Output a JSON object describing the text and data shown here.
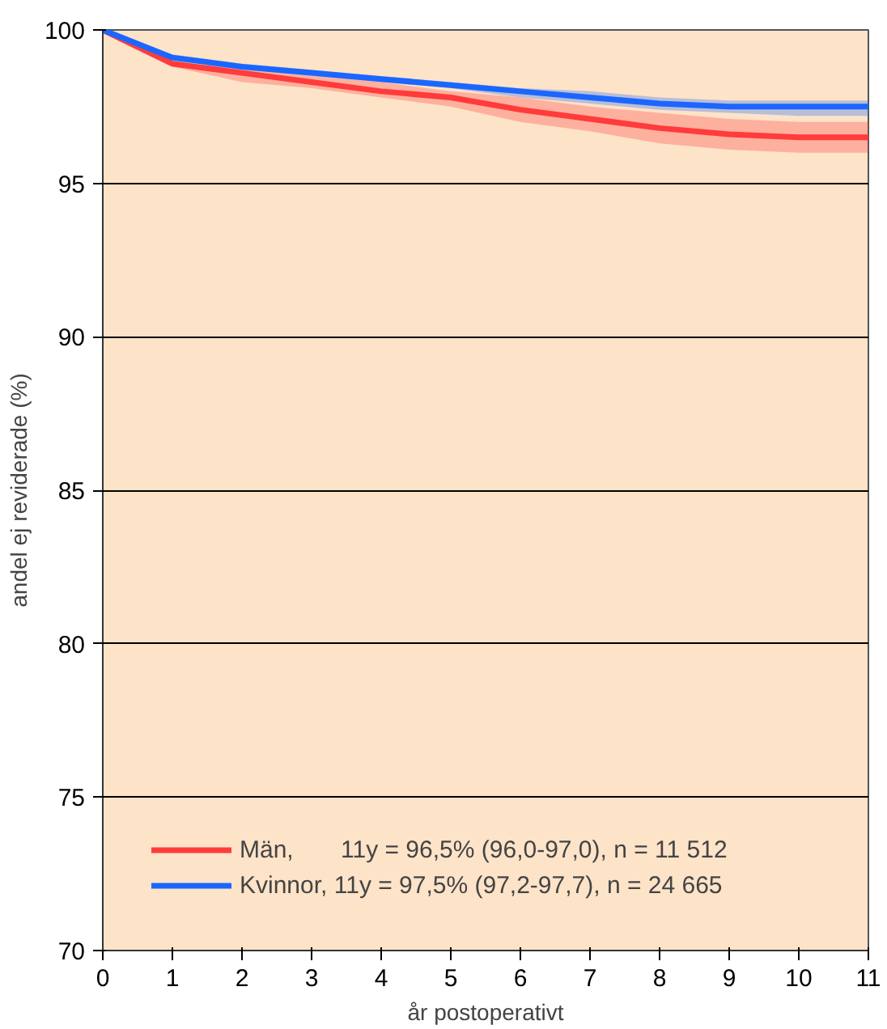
{
  "chart_data": {
    "type": "line",
    "xlabel": "år postoperativt",
    "ylabel": "andel ej reviderade (%)",
    "x": [
      0,
      1,
      2,
      3,
      4,
      5,
      6,
      7,
      8,
      9,
      10,
      11
    ],
    "series": [
      {
        "name": "Män,       11y = 96,5% (96,0-97,0), n = 11 512",
        "color": "#ff3b3b",
        "values": [
          100,
          98.9,
          98.6,
          98.3,
          98.0,
          97.8,
          97.4,
          97.1,
          96.8,
          96.6,
          96.5,
          96.5
        ],
        "lower": [
          100,
          98.8,
          98.3,
          98.1,
          97.8,
          97.5,
          97.0,
          96.7,
          96.3,
          96.1,
          96.0,
          96.0
        ],
        "upper": [
          100,
          99.0,
          98.7,
          98.5,
          98.3,
          98.0,
          97.8,
          97.5,
          97.3,
          97.1,
          97.0,
          97.0
        ]
      },
      {
        "name": "Kvinnor, 11y = 97,5% (97,2-97,7), n = 24 665",
        "color": "#1a66ff",
        "values": [
          100,
          99.1,
          98.8,
          98.6,
          98.4,
          98.2,
          98.0,
          97.8,
          97.6,
          97.5,
          97.5,
          97.5
        ],
        "lower": [
          100,
          99.0,
          98.7,
          98.5,
          98.3,
          98.1,
          97.8,
          97.6,
          97.4,
          97.3,
          97.2,
          97.2
        ],
        "upper": [
          100,
          99.2,
          98.9,
          98.7,
          98.5,
          98.3,
          98.1,
          98.0,
          97.8,
          97.7,
          97.7,
          97.7
        ]
      }
    ],
    "xlim": [
      0,
      11
    ],
    "xticks": [
      0,
      1,
      2,
      3,
      4,
      5,
      6,
      7,
      8,
      9,
      10,
      11
    ],
    "ylim": [
      70,
      100
    ],
    "yticks": [
      70,
      75,
      80,
      85,
      90,
      95,
      100
    ],
    "grid": "y",
    "legend": "bottom left",
    "marker": "none",
    "line_style": "solid"
  }
}
